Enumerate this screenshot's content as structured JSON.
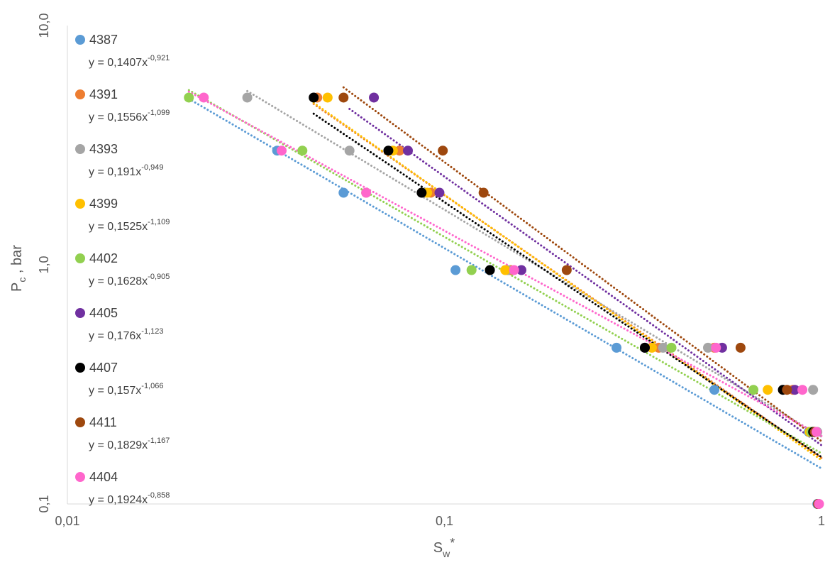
{
  "chart_data": {
    "type": "scatter",
    "xlabel": "S",
    "xlabel_sub": "w",
    "xlabel_sup": "*",
    "ylabel": "P",
    "ylabel_sub": "c",
    "ylabel_suffix": " , bar",
    "x_scale": "log",
    "y_scale": "log",
    "xlim": [
      0.01,
      1
    ],
    "ylim": [
      0.1,
      10
    ],
    "x_ticks": [
      0.01,
      0.1,
      1
    ],
    "x_tick_labels": [
      "0,01",
      "0,1",
      "1"
    ],
    "y_ticks": [
      0.1,
      1,
      10
    ],
    "y_tick_labels": [
      "0,1",
      "1,0",
      "10,0"
    ],
    "grid": false,
    "legend_position": "left",
    "trendline_style": "power, dotted",
    "series": [
      {
        "name": "4387",
        "color": "#5B9BD5",
        "equation": {
          "prefix": "y = 0,1407x",
          "exponent": "-0,921"
        },
        "trend": {
          "a": 0.1407,
          "b": -0.921,
          "x_range": [
            0.021,
            1.0
          ]
        },
        "points": [
          [
            0.036,
            3.0
          ],
          [
            0.054,
            2.0
          ],
          [
            0.107,
            0.95
          ],
          [
            0.286,
            0.45
          ],
          [
            0.52,
            0.3
          ],
          [
            0.925,
            0.2
          ],
          [
            0.975,
            0.1
          ]
        ]
      },
      {
        "name": "4391",
        "color": "#ED7D31",
        "equation": {
          "prefix": "y = 0,1556x",
          "exponent": "-1,099"
        },
        "trend": {
          "a": 0.1556,
          "b": -1.099,
          "x_range": [
            0.045,
            1.0
          ]
        },
        "points": [
          [
            0.046,
            5.0
          ],
          [
            0.076,
            3.0
          ],
          [
            0.092,
            2.0
          ],
          [
            0.15,
            0.95
          ],
          [
            0.37,
            0.45
          ],
          [
            0.52,
            0.45
          ],
          [
            0.84,
            0.3
          ],
          [
            0.96,
            0.2
          ],
          [
            0.98,
            0.1
          ]
        ]
      },
      {
        "name": "4393",
        "color": "#A5A5A5",
        "equation": {
          "prefix": "y = 0,191x",
          "exponent": "-0,949"
        },
        "trend": {
          "a": 0.191,
          "b": -0.949,
          "x_range": [
            0.03,
            1.0
          ]
        },
        "points": [
          [
            0.03,
            5.0
          ],
          [
            0.056,
            3.0
          ],
          [
            0.088,
            2.0
          ],
          [
            0.147,
            0.95
          ],
          [
            0.38,
            0.45
          ],
          [
            0.5,
            0.45
          ],
          [
            0.95,
            0.3
          ],
          [
            0.975,
            0.2
          ],
          [
            0.98,
            0.1
          ]
        ]
      },
      {
        "name": "4399",
        "color": "#FFC000",
        "equation": {
          "prefix": "y = 0,1525x",
          "exponent": "-1,109"
        },
        "trend": {
          "a": 0.1525,
          "b": -1.109,
          "x_range": [
            0.045,
            1.0
          ]
        },
        "points": [
          [
            0.049,
            5.0
          ],
          [
            0.073,
            3.0
          ],
          [
            0.09,
            2.0
          ],
          [
            0.145,
            0.95
          ],
          [
            0.355,
            0.45
          ],
          [
            0.72,
            0.3
          ],
          [
            0.93,
            0.2
          ],
          [
            0.98,
            0.1
          ]
        ]
      },
      {
        "name": "4402",
        "color": "#92D050",
        "equation": {
          "prefix": "y = 0,1628x",
          "exponent": "-0,905"
        },
        "trend": {
          "a": 0.1628,
          "b": -0.905,
          "x_range": [
            0.021,
            1.0
          ]
        },
        "points": [
          [
            0.021,
            5.0
          ],
          [
            0.042,
            3.0
          ],
          [
            0.062,
            2.0
          ],
          [
            0.118,
            0.95
          ],
          [
            0.4,
            0.45
          ],
          [
            0.66,
            0.3
          ],
          [
            0.94,
            0.2
          ],
          [
            0.98,
            0.1
          ]
        ]
      },
      {
        "name": "4405",
        "color": "#7030A0",
        "equation": {
          "prefix": "y = 0,176x",
          "exponent": "-1,123"
        },
        "trend": {
          "a": 0.176,
          "b": -1.123,
          "x_range": [
            0.056,
            1.0
          ]
        },
        "points": [
          [
            0.065,
            5.0
          ],
          [
            0.08,
            3.0
          ],
          [
            0.097,
            2.0
          ],
          [
            0.16,
            0.95
          ],
          [
            0.34,
            0.45
          ],
          [
            0.545,
            0.45
          ],
          [
            0.85,
            0.3
          ],
          [
            0.965,
            0.2
          ],
          [
            0.98,
            0.1
          ]
        ]
      },
      {
        "name": "4407",
        "color": "#000000",
        "equation": {
          "prefix": "y = 0,157x",
          "exponent": "-1,066"
        },
        "trend": {
          "a": 0.157,
          "b": -1.066,
          "x_range": [
            0.045,
            1.0
          ]
        },
        "points": [
          [
            0.045,
            5.0
          ],
          [
            0.071,
            3.0
          ],
          [
            0.087,
            2.0
          ],
          [
            0.132,
            0.95
          ],
          [
            0.34,
            0.45
          ],
          [
            0.79,
            0.3
          ],
          [
            0.95,
            0.2
          ],
          [
            0.98,
            0.1
          ]
        ]
      },
      {
        "name": "4411",
        "color": "#9E480E",
        "equation": {
          "prefix": "y = 0,1829x",
          "exponent": "-1,167"
        },
        "trend": {
          "a": 0.1829,
          "b": -1.167,
          "x_range": [
            0.054,
            1.0
          ]
        },
        "points": [
          [
            0.054,
            5.0
          ],
          [
            0.099,
            3.0
          ],
          [
            0.127,
            2.0
          ],
          [
            0.211,
            0.95
          ],
          [
            0.61,
            0.45
          ],
          [
            0.81,
            0.3
          ],
          [
            0.96,
            0.2
          ],
          [
            0.98,
            0.1
          ]
        ]
      },
      {
        "name": "4404",
        "color": "#FF66CC",
        "equation": {
          "prefix": "y = 0,1924x",
          "exponent": "-0,858"
        },
        "trend": {
          "a": 0.1924,
          "b": -0.858,
          "x_range": [
            0.021,
            1.0
          ]
        },
        "points": [
          [
            0.023,
            5.0
          ],
          [
            0.037,
            3.0
          ],
          [
            0.062,
            2.0
          ],
          [
            0.153,
            0.95
          ],
          [
            0.525,
            0.45
          ],
          [
            0.89,
            0.3
          ],
          [
            0.97,
            0.2
          ],
          [
            0.985,
            0.1
          ]
        ]
      }
    ]
  }
}
